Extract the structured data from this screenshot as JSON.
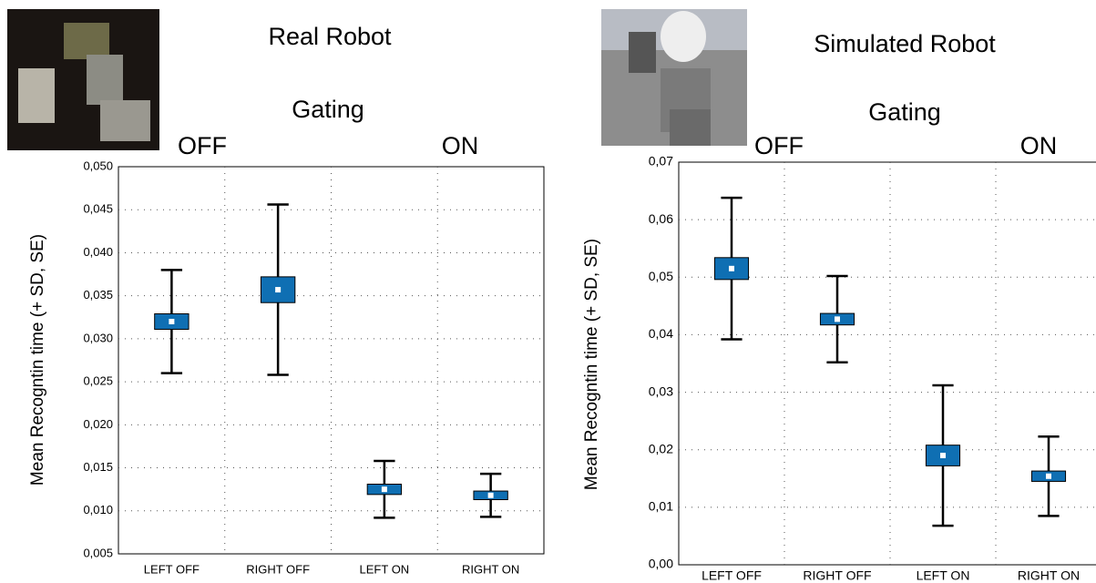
{
  "chart_data": [
    {
      "type": "box",
      "title": "Real Robot",
      "subtitle": "Gating",
      "annotations": [
        "OFF",
        "ON"
      ],
      "y_label": "Mean Recogntin time (+ SD, SE)",
      "categories": [
        "LEFT OFF",
        "RIGHT OFF",
        "LEFT ON",
        "RIGHT ON"
      ],
      "values": [
        0.032,
        0.0357,
        0.0125,
        0.0118
      ],
      "se": [
        0.0009,
        0.0015,
        0.0006,
        0.0005
      ],
      "sd": [
        0.006,
        0.0099,
        0.0033,
        0.0025
      ],
      "color": "#0f6fb3",
      "grid": true,
      "ylim": [
        0.005,
        0.05
      ],
      "yticks": [
        {
          "value": 0.005,
          "label": "0,005"
        },
        {
          "value": 0.01,
          "label": "0,010"
        },
        {
          "value": 0.015,
          "label": "0,015"
        },
        {
          "value": 0.02,
          "label": "0,020"
        },
        {
          "value": 0.025,
          "label": "0,025"
        },
        {
          "value": 0.03,
          "label": "0,030"
        },
        {
          "value": 0.035,
          "label": "0,035"
        },
        {
          "value": 0.04,
          "label": "0,040"
        },
        {
          "value": 0.045,
          "label": "0,045"
        },
        {
          "value": 0.05,
          "label": "0,050"
        }
      ]
    },
    {
      "type": "box",
      "title": "Simulated Robot",
      "subtitle": "Gating",
      "annotations": [
        "OFF",
        "ON"
      ],
      "y_label": "Mean Recogntin time (+ SD, SE)",
      "categories": [
        "LEFT OFF",
        "RIGHT OFF",
        "LEFT ON",
        "RIGHT ON"
      ],
      "values": [
        0.0515,
        0.0427,
        0.019,
        0.0154
      ],
      "se": [
        0.0019,
        0.001,
        0.0018,
        0.0009
      ],
      "sd": [
        0.0123,
        0.0075,
        0.0122,
        0.0069
      ],
      "color": "#0f6fb3",
      "grid": true,
      "ylim": [
        0,
        0.07
      ],
      "yticks": [
        {
          "value": 0,
          "label": "0,00"
        },
        {
          "value": 0.01,
          "label": "0,01"
        },
        {
          "value": 0.02,
          "label": "0,02"
        },
        {
          "value": 0.03,
          "label": "0,03"
        },
        {
          "value": 0.04,
          "label": "0,04"
        },
        {
          "value": 0.05,
          "label": "0,05"
        },
        {
          "value": 0.06,
          "label": "0,06"
        },
        {
          "value": 0.07,
          "label": "0,07"
        }
      ]
    }
  ]
}
